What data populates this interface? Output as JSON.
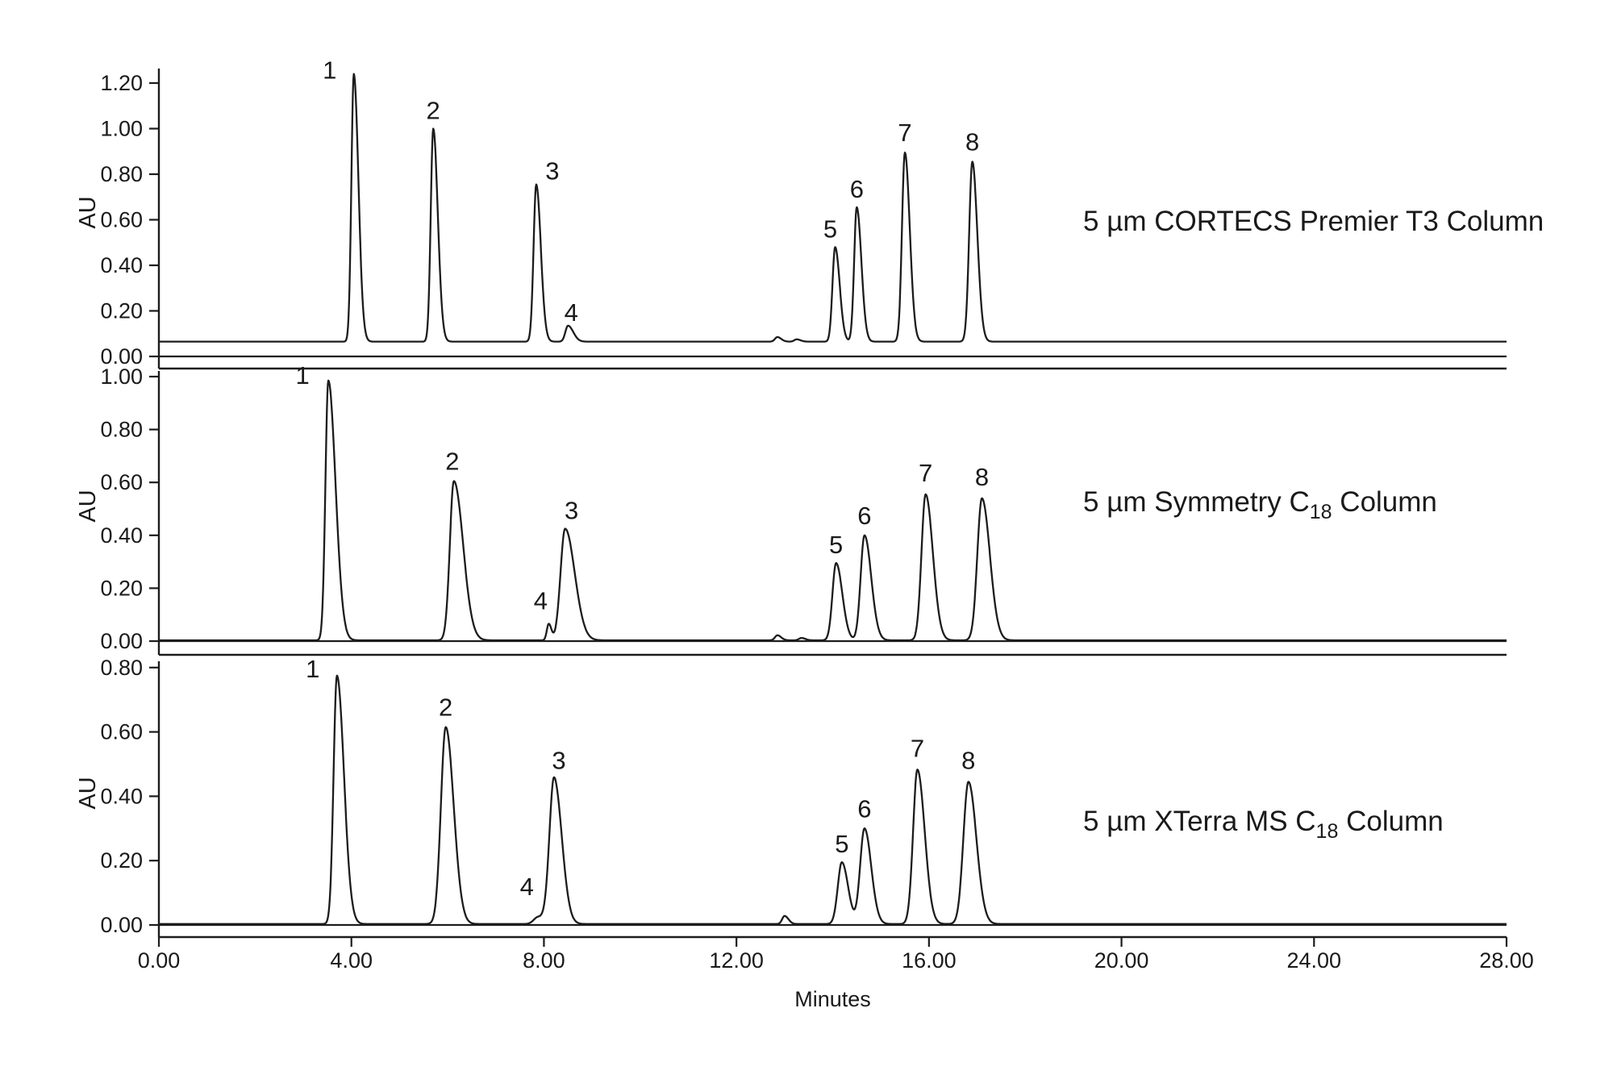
{
  "figure": {
    "background_color": "#ffffff",
    "line_color": "#1c1c1c",
    "text_color": "#1a1a1a"
  },
  "x_axis": {
    "label": "Minutes",
    "min": 0,
    "max": 28,
    "tick_interval": 4,
    "tick_labels": [
      "0.00",
      "4.00",
      "8.00",
      "12.00",
      "16.00",
      "20.00",
      "24.00",
      "28.00"
    ]
  },
  "chart_data": [
    {
      "type": "line",
      "title": {
        "text": "5 µm CORTECS Premier T3 Column",
        "parts": [
          {
            "t": "5 µm CORTECS Premier T3 Column",
            "sub": false
          }
        ]
      },
      "ylabel": "AU",
      "ylim": [
        0.0,
        1.26
      ],
      "ytick_labels": [
        "0.00",
        "0.20",
        "0.40",
        "0.60",
        "0.80",
        "1.00",
        "1.20"
      ],
      "baseline_au": 0.065,
      "peaks": [
        {
          "label": "1",
          "t": 4.05,
          "height": 1.24,
          "wl": 0.05,
          "wr": 0.095,
          "ldx": -30,
          "ldy": 6
        },
        {
          "label": "2",
          "t": 5.7,
          "height": 1.0,
          "wl": 0.052,
          "wr": 0.095,
          "ldx": 0,
          "ldy": -12
        },
        {
          "label": "3",
          "t": 7.84,
          "height": 0.755,
          "wl": 0.055,
          "wr": 0.095,
          "ldx": 20,
          "ldy": -6
        },
        {
          "label": "4",
          "t": 8.5,
          "height": 0.135,
          "wl": 0.055,
          "wr": 0.11,
          "ldx": 4,
          "ldy": -6
        },
        {
          "label": "5",
          "t": 14.05,
          "height": 0.48,
          "wl": 0.055,
          "wr": 0.095,
          "ldx": -6,
          "ldy": -12
        },
        {
          "label": "6",
          "t": 14.5,
          "height": 0.655,
          "wl": 0.055,
          "wr": 0.095,
          "ldx": 0,
          "ldy": -12
        },
        {
          "label": "7",
          "t": 15.5,
          "height": 0.895,
          "wl": 0.06,
          "wr": 0.1,
          "ldx": 0,
          "ldy": -14
        },
        {
          "label": "8",
          "t": 16.9,
          "height": 0.855,
          "wl": 0.065,
          "wr": 0.105,
          "ldx": 0,
          "ldy": -14
        }
      ],
      "minor_bumps": [
        {
          "t": 12.85,
          "height": 0.085,
          "wl": 0.05,
          "wr": 0.08
        },
        {
          "t": 13.25,
          "height": 0.075,
          "wl": 0.05,
          "wr": 0.08
        }
      ]
    },
    {
      "type": "line",
      "title": {
        "text": "5 µm Symmetry C18 Column",
        "parts": [
          {
            "t": "5 µm Symmetry C",
            "sub": false
          },
          {
            "t": "18",
            "sub": true
          },
          {
            "t": " Column",
            "sub": false
          }
        ]
      },
      "ylabel": "AU",
      "ylim": [
        0.0,
        1.02
      ],
      "ytick_labels": [
        "0.00",
        "0.20",
        "0.40",
        "0.60",
        "0.80",
        "1.00"
      ],
      "baseline_au": 0.003,
      "peaks": [
        {
          "label": "1",
          "t": 3.52,
          "height": 0.985,
          "wl": 0.06,
          "wr": 0.15,
          "ldx": -32,
          "ldy": 4
        },
        {
          "label": "2",
          "t": 6.13,
          "height": 0.605,
          "wl": 0.085,
          "wr": 0.19,
          "ldx": -2,
          "ldy": -14
        },
        {
          "label": "3",
          "t": 8.44,
          "height": 0.425,
          "wl": 0.095,
          "wr": 0.2,
          "ldx": 8,
          "ldy": -12
        },
        {
          "label": "4",
          "t": 8.1,
          "height": 0.065,
          "wl": 0.04,
          "wr": 0.055,
          "ldx": -10,
          "ldy": -18
        },
        {
          "label": "5",
          "t": 14.07,
          "height": 0.295,
          "wl": 0.075,
          "wr": 0.13,
          "ldx": 0,
          "ldy": -12
        },
        {
          "label": "6",
          "t": 14.66,
          "height": 0.4,
          "wl": 0.08,
          "wr": 0.14,
          "ldx": 0,
          "ldy": -14
        },
        {
          "label": "7",
          "t": 15.93,
          "height": 0.555,
          "wl": 0.085,
          "wr": 0.15,
          "ldx": 0,
          "ldy": -16
        },
        {
          "label": "8",
          "t": 17.1,
          "height": 0.54,
          "wl": 0.095,
          "wr": 0.165,
          "ldx": 0,
          "ldy": -16
        }
      ],
      "minor_bumps": [
        {
          "t": 12.85,
          "height": 0.022,
          "wl": 0.05,
          "wr": 0.08
        },
        {
          "t": 13.35,
          "height": 0.012,
          "wl": 0.05,
          "wr": 0.08
        }
      ]
    },
    {
      "type": "line",
      "title": {
        "text": "5 µm XTerra MS C18 Column",
        "parts": [
          {
            "t": "5 µm XTerra MS C",
            "sub": false
          },
          {
            "t": "18",
            "sub": true
          },
          {
            "t": " Column",
            "sub": false
          }
        ]
      },
      "ylabel": "AU",
      "ylim": [
        0.0,
        0.82
      ],
      "ytick_labels": [
        "0.00",
        "0.20",
        "0.40",
        "0.60",
        "0.80"
      ],
      "baseline_au": 0.003,
      "peaks": [
        {
          "label": "1",
          "t": 3.7,
          "height": 0.775,
          "wl": 0.07,
          "wr": 0.145,
          "ldx": -30,
          "ldy": 2
        },
        {
          "label": "2",
          "t": 5.96,
          "height": 0.615,
          "wl": 0.1,
          "wr": 0.165,
          "ldx": 0,
          "ldy": -14
        },
        {
          "label": "3",
          "t": 8.21,
          "height": 0.455,
          "wl": 0.095,
          "wr": 0.16,
          "ldx": 6,
          "ldy": -12
        },
        {
          "label": "4",
          "t": 7.88,
          "height": 0.025,
          "wl": 0.09,
          "wr": 0.18,
          "ldx": -14,
          "ldy": -27
        },
        {
          "label": "5",
          "t": 14.19,
          "height": 0.195,
          "wl": 0.085,
          "wr": 0.13,
          "ldx": 0,
          "ldy": -12
        },
        {
          "label": "6",
          "t": 14.66,
          "height": 0.3,
          "wl": 0.09,
          "wr": 0.14,
          "ldx": 0,
          "ldy": -14
        },
        {
          "label": "7",
          "t": 15.76,
          "height": 0.483,
          "wl": 0.09,
          "wr": 0.15,
          "ldx": 0,
          "ldy": -16
        },
        {
          "label": "8",
          "t": 16.82,
          "height": 0.445,
          "wl": 0.105,
          "wr": 0.165,
          "ldx": 0,
          "ldy": -16
        }
      ],
      "minor_bumps": [
        {
          "t": 13.0,
          "height": 0.028,
          "wl": 0.05,
          "wr": 0.08
        }
      ]
    }
  ]
}
